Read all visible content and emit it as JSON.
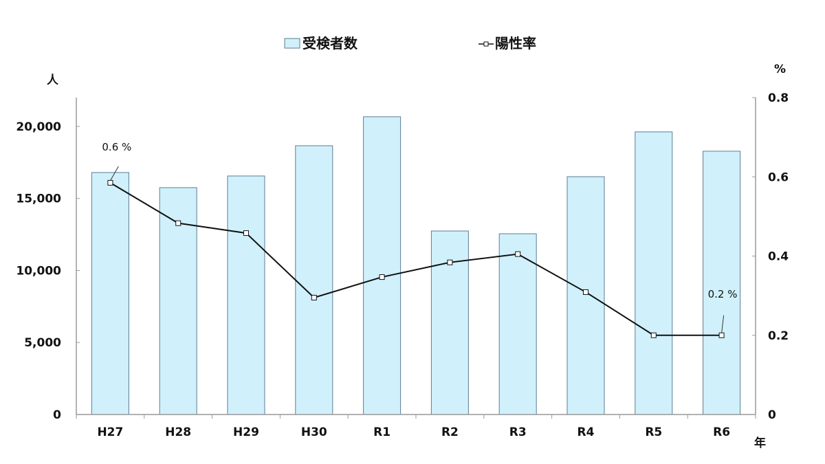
{
  "chart_data": {
    "type": "bar+line",
    "title": "",
    "categories": [
      "H27",
      "H28",
      "H29",
      "H30",
      "R1",
      "R2",
      "R3",
      "R4",
      "R5",
      "R6"
    ],
    "series": [
      {
        "name": "受検者数",
        "type": "bar",
        "axis": "left",
        "values": [
          16800,
          15750,
          16560,
          18660,
          20670,
          12740,
          12550,
          16510,
          19620,
          18280
        ]
      },
      {
        "name": "陽性率",
        "type": "line",
        "axis": "right",
        "values": [
          0.585,
          0.483,
          0.458,
          0.295,
          0.347,
          0.384,
          0.405,
          0.309,
          0.2,
          0.2
        ]
      }
    ],
    "xlabel": "年",
    "ylabel": "人",
    "y2label": "%",
    "ylim": [
      0,
      22000
    ],
    "y2lim": [
      0,
      0.8
    ],
    "yticks": [
      0,
      5000,
      10000,
      15000,
      20000
    ],
    "ytick_labels": [
      "0",
      "5,000",
      "10,000",
      "15,000",
      "20,000"
    ],
    "y2ticks": [
      0,
      0.2,
      0.4,
      0.6,
      0.8
    ],
    "y2tick_labels": [
      "0",
      "0.2",
      "0.4",
      "0.6",
      "0.8"
    ],
    "annotations": [
      {
        "category": "H27",
        "series": "陽性率",
        "text": "0.6 %"
      },
      {
        "category": "R6",
        "series": "陽性率",
        "text": "0.2 %"
      }
    ],
    "legend_position": "top",
    "grid": false
  },
  "colors": {
    "bar_fill": "#d0f0fb",
    "bar_stroke": "#5a7d96",
    "line": "#111111",
    "marker_fill": "#ffffff",
    "axis": "#999999"
  },
  "legend": {
    "bar_label": "受検者数",
    "line_label": "陽性率"
  },
  "axes": {
    "left_unit": "人",
    "right_unit": "%",
    "x_unit": "年"
  }
}
